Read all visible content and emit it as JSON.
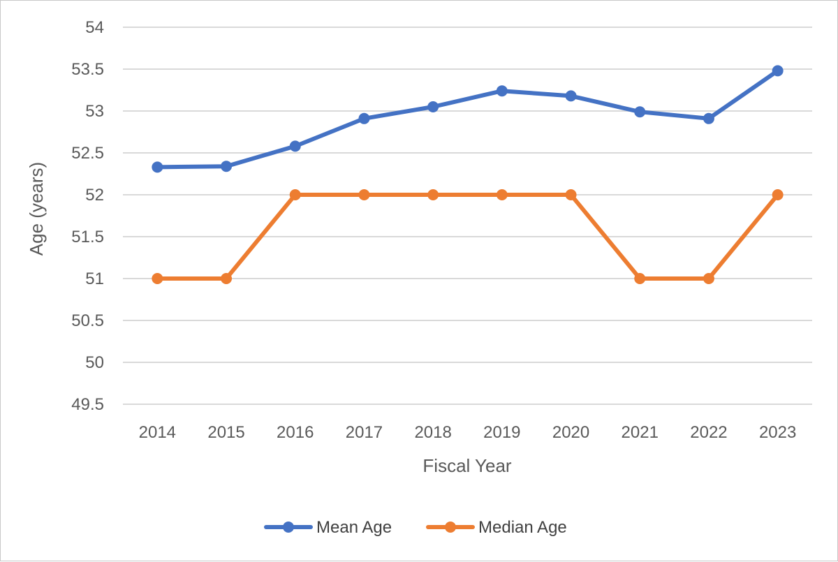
{
  "chart_data": {
    "type": "line",
    "title": "",
    "xlabel": "Fiscal Year",
    "ylabel": "Age (years)",
    "categories": [
      "2014",
      "2015",
      "2016",
      "2017",
      "2018",
      "2019",
      "2020",
      "2021",
      "2022",
      "2023"
    ],
    "y_ticks": [
      "49.5",
      "50",
      "50.5",
      "51",
      "51.5",
      "52",
      "52.5",
      "53",
      "53.5",
      "54"
    ],
    "ylim": [
      49.5,
      54
    ],
    "grid": true,
    "legend_position": "bottom",
    "series": [
      {
        "name": "Mean Age",
        "color": "#4472C4",
        "values": [
          52.33,
          52.34,
          52.58,
          52.91,
          53.05,
          53.24,
          53.18,
          52.99,
          52.91,
          53.48
        ]
      },
      {
        "name": "Median Age",
        "color": "#ED7D31",
        "values": [
          51,
          51,
          52,
          52,
          52,
          52,
          52,
          51,
          51,
          52
        ]
      }
    ]
  }
}
